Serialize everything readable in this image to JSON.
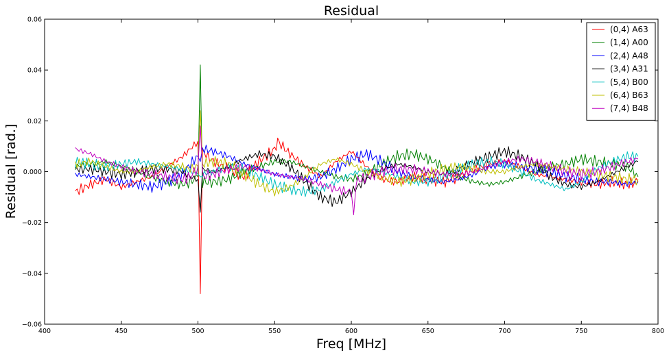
{
  "chart_data": {
    "type": "line",
    "title": "Residual",
    "xlabel": "Freq [MHz]",
    "ylabel": "Residual [rad.]",
    "xlim": [
      400,
      800
    ],
    "ylim": [
      -0.06,
      0.06
    ],
    "xticks": [
      400,
      450,
      500,
      550,
      600,
      650,
      700,
      750,
      800
    ],
    "yticks": [
      -0.06,
      -0.04,
      -0.02,
      0.0,
      0.02,
      0.04,
      0.06
    ],
    "xtick_labels": [
      "400",
      "450",
      "500",
      "550",
      "600",
      "650",
      "700",
      "750",
      "800"
    ],
    "ytick_labels": [
      "−0.06",
      "−0.04",
      "−0.02",
      "0.000",
      "0.02",
      "0.04",
      "0.06"
    ],
    "grid": false,
    "legend_position": "top-right",
    "series": [
      {
        "name": "(0,4) A63",
        "color": "#ff0000",
        "x": [
          420,
          430,
          440,
          450,
          460,
          470,
          480,
          490,
          495,
          500,
          501.5,
          503,
          510,
          520,
          530,
          540,
          550,
          552,
          560,
          570,
          580,
          590,
          600,
          610,
          620,
          630,
          640,
          650,
          660,
          670,
          680,
          690,
          700,
          710,
          720,
          730,
          740,
          750,
          760,
          770,
          780,
          787
        ],
        "y": [
          -0.008,
          -0.005,
          -0.003,
          -0.006,
          -0.004,
          -0.002,
          0.002,
          0.006,
          0.009,
          0.012,
          -0.048,
          0.008,
          0.004,
          0.001,
          -0.002,
          0.004,
          0.009,
          0.012,
          0.007,
          0.002,
          -0.002,
          0.004,
          0.008,
          0.002,
          -0.003,
          -0.004,
          -0.002,
          -0.003,
          -0.004,
          -0.002,
          0.001,
          0.003,
          0.004,
          0.002,
          -0.001,
          -0.002,
          -0.003,
          -0.004,
          -0.005,
          -0.004,
          -0.005,
          -0.004
        ]
      },
      {
        "name": "(1,4) A00",
        "color": "#008000",
        "x": [
          420,
          430,
          440,
          450,
          460,
          470,
          480,
          490,
          495,
          500,
          501.5,
          503,
          510,
          520,
          530,
          540,
          550,
          560,
          570,
          580,
          590,
          600,
          610,
          620,
          630,
          640,
          650,
          660,
          670,
          680,
          690,
          700,
          710,
          720,
          730,
          740,
          750,
          760,
          770,
          780,
          787
        ],
        "y": [
          0.002,
          0.003,
          0.004,
          0.002,
          0.0,
          -0.002,
          -0.004,
          -0.005,
          -0.004,
          -0.002,
          0.042,
          -0.004,
          -0.004,
          -0.003,
          0.0,
          0.002,
          0.004,
          0.004,
          0.002,
          0.0,
          -0.002,
          -0.003,
          -0.001,
          0.003,
          0.006,
          0.007,
          0.005,
          0.002,
          -0.002,
          -0.004,
          -0.005,
          -0.004,
          -0.002,
          0.0,
          0.002,
          0.003,
          0.005,
          0.004,
          0.003,
          0.002,
          -0.002
        ]
      },
      {
        "name": "(2,4) A48",
        "color": "#0000ff",
        "x": [
          420,
          430,
          440,
          450,
          460,
          470,
          480,
          490,
          495,
          500,
          501.5,
          503,
          510,
          520,
          530,
          540,
          550,
          560,
          570,
          580,
          590,
          600,
          610,
          620,
          630,
          640,
          650,
          660,
          670,
          680,
          690,
          700,
          710,
          720,
          730,
          740,
          750,
          760,
          770,
          780,
          787
        ],
        "y": [
          -0.001,
          -0.002,
          -0.003,
          -0.004,
          -0.005,
          -0.006,
          -0.004,
          -0.001,
          0.003,
          0.006,
          0.004,
          0.009,
          0.008,
          0.006,
          0.003,
          0.001,
          -0.001,
          -0.002,
          -0.003,
          -0.002,
          0.001,
          0.005,
          0.007,
          0.004,
          0.0,
          -0.002,
          -0.003,
          -0.004,
          -0.003,
          -0.001,
          0.002,
          0.003,
          0.002,
          0.001,
          0.0,
          -0.002,
          -0.003,
          -0.004,
          -0.004,
          -0.005,
          -0.004
        ]
      },
      {
        "name": "(3,4) A31",
        "color": "#000000",
        "x": [
          420,
          430,
          440,
          450,
          460,
          470,
          480,
          490,
          495,
          500,
          501.5,
          503,
          510,
          520,
          530,
          540,
          550,
          560,
          570,
          580,
          590,
          600,
          610,
          620,
          630,
          640,
          650,
          660,
          670,
          680,
          690,
          700,
          710,
          720,
          730,
          740,
          750,
          760,
          770,
          780,
          787
        ],
        "y": [
          0.001,
          0.001,
          0.0,
          -0.001,
          0.0,
          0.001,
          0.001,
          0.0,
          -0.002,
          -0.003,
          -0.016,
          0.001,
          0.0,
          0.002,
          0.005,
          0.007,
          0.006,
          0.002,
          -0.004,
          -0.01,
          -0.012,
          -0.008,
          -0.003,
          0.001,
          0.003,
          0.002,
          0.0,
          -0.001,
          0.001,
          0.004,
          0.006,
          0.008,
          0.006,
          0.003,
          -0.002,
          -0.005,
          -0.006,
          -0.004,
          -0.001,
          0.002,
          0.004
        ]
      },
      {
        "name": "(5,4) B00",
        "color": "#00bfbf",
        "x": [
          420,
          430,
          440,
          450,
          460,
          470,
          480,
          490,
          495,
          500,
          501.5,
          503,
          510,
          520,
          530,
          540,
          550,
          560,
          570,
          580,
          590,
          600,
          610,
          620,
          630,
          640,
          650,
          660,
          670,
          680,
          690,
          700,
          710,
          720,
          730,
          740,
          750,
          760,
          770,
          780,
          787
        ],
        "y": [
          0.004,
          0.003,
          0.002,
          0.003,
          0.004,
          0.003,
          0.002,
          0.001,
          0.0,
          -0.001,
          -0.002,
          -0.001,
          0.0,
          0.002,
          0.001,
          -0.002,
          -0.005,
          -0.007,
          -0.008,
          -0.007,
          -0.004,
          -0.001,
          0.001,
          0.0,
          -0.002,
          -0.004,
          -0.004,
          -0.002,
          0.001,
          0.003,
          0.004,
          0.003,
          0.0,
          -0.003,
          -0.005,
          -0.007,
          -0.004,
          0.001,
          0.004,
          0.006,
          0.006
        ]
      },
      {
        "name": "(6,4) B63",
        "color": "#bfbf00",
        "x": [
          420,
          430,
          440,
          450,
          460,
          470,
          480,
          490,
          495,
          500,
          501.5,
          503,
          510,
          520,
          530,
          540,
          550,
          560,
          570,
          580,
          590,
          600,
          610,
          620,
          630,
          640,
          650,
          660,
          670,
          680,
          690,
          700,
          710,
          720,
          730,
          740,
          750,
          760,
          770,
          780,
          787
        ],
        "y": [
          0.003,
          0.004,
          0.002,
          0.0,
          0.0,
          0.002,
          0.003,
          0.002,
          0.001,
          0.002,
          0.024,
          0.003,
          0.004,
          0.003,
          -0.001,
          -0.005,
          -0.008,
          -0.006,
          -0.002,
          0.003,
          0.005,
          0.003,
          0.0,
          -0.002,
          -0.004,
          -0.003,
          -0.001,
          0.001,
          0.002,
          0.001,
          0.0,
          0.0,
          0.002,
          0.003,
          0.002,
          0.001,
          0.0,
          -0.001,
          -0.002,
          -0.003,
          -0.003
        ]
      },
      {
        "name": "(7,4) B48",
        "color": "#bf00bf",
        "x": [
          420,
          430,
          440,
          450,
          460,
          470,
          480,
          490,
          495,
          500,
          501.5,
          503,
          510,
          520,
          530,
          540,
          550,
          560,
          570,
          580,
          590,
          600,
          601.5,
          603,
          610,
          620,
          630,
          640,
          650,
          660,
          670,
          680,
          690,
          700,
          710,
          720,
          730,
          740,
          750,
          760,
          770,
          780,
          787
        ],
        "y": [
          0.009,
          0.007,
          0.004,
          0.002,
          0.0,
          -0.001,
          -0.002,
          -0.003,
          -0.002,
          0.002,
          0.018,
          -0.002,
          -0.001,
          0.001,
          0.002,
          0.001,
          -0.001,
          -0.002,
          -0.003,
          -0.005,
          -0.007,
          -0.008,
          -0.017,
          -0.004,
          -0.002,
          0.0,
          0.001,
          0.001,
          0.0,
          -0.001,
          -0.001,
          0.0,
          0.002,
          0.004,
          0.005,
          0.004,
          0.002,
          0.0,
          -0.001,
          0.0,
          0.002,
          0.004,
          0.005
        ]
      }
    ]
  }
}
